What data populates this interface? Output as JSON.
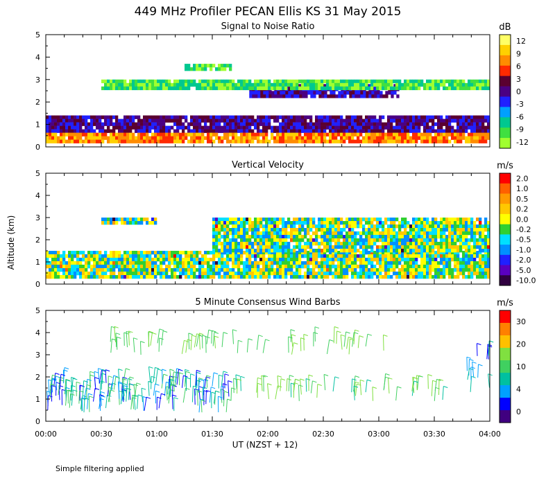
{
  "figure": {
    "title": "449 MHz Profiler PECAN Ellis KS 31 May 2015",
    "ylabel": "Altitude (km)",
    "xlabel": "UT   (NZST + 12)",
    "footnote": "Simple filtering applied",
    "x_ticks": [
      "00:00",
      "00:30",
      "01:00",
      "01:30",
      "02:00",
      "02:30",
      "03:00",
      "03:30",
      "04:00"
    ],
    "y_ticks": [
      "0",
      "1",
      "2",
      "3",
      "4",
      "5"
    ]
  },
  "chart_data": [
    {
      "type": "heatmap",
      "title": "Signal to Noise Ratio",
      "unit": "dB",
      "xlim": [
        "00:00",
        "04:00"
      ],
      "ylim": [
        0,
        5
      ],
      "ylabel": "Altitude (km)",
      "colorbar": {
        "labels": [
          "12",
          "9",
          "6",
          "3",
          "0",
          "-3",
          "-6",
          "-9",
          "-12"
        ],
        "colors": [
          "#ffff66",
          "#ffd000",
          "#ff8c00",
          "#ff2a00",
          "#5a0030",
          "#4b0082",
          "#2020ff",
          "#00a0ff",
          "#00c890",
          "#40e040",
          "#a0ff30"
        ]
      },
      "layers": [
        {
          "x": [
            "00:00",
            "04:00"
          ],
          "alt_km": [
            0.25,
            1.4
          ],
          "snr_db": "6 to 12 near surface, -3 to 3 near 1.2 km"
        },
        {
          "x": [
            "01:50",
            "03:10"
          ],
          "alt_km": [
            2.2,
            2.8
          ],
          "snr_db": "about 0"
        },
        {
          "x": [
            "00:30",
            "04:00"
          ],
          "alt_km": [
            2.6,
            3.0
          ],
          "snr_db": "-12 to -6"
        },
        {
          "x": [
            "01:15",
            "01:40"
          ],
          "alt_km": [
            3.4,
            3.7
          ],
          "snr_db": "-12 to -9"
        }
      ]
    },
    {
      "type": "heatmap",
      "title": "Vertical Velocity",
      "unit": "m/s",
      "xlim": [
        "00:00",
        "04:00"
      ],
      "ylim": [
        0,
        5
      ],
      "ylabel": "Altitude (km)",
      "colorbar": {
        "labels": [
          "2.0",
          "1.0",
          "0.5",
          "0.2",
          "0.0",
          "-0.2",
          "-0.5",
          "-1.0",
          "-2.0",
          "-5.0",
          "-10.0"
        ],
        "colors": [
          "#ff0000",
          "#ff6000",
          "#ff9a00",
          "#ffc800",
          "#ffff00",
          "#30d030",
          "#00e0ff",
          "#0090ff",
          "#2020ff",
          "#5a00c0",
          "#300040"
        ]
      },
      "layers": [
        {
          "x": [
            "00:00",
            "04:00"
          ],
          "alt_km": [
            0.25,
            1.5
          ],
          "w_ms": "-0.5 to 0.2"
        },
        {
          "x": [
            "01:30",
            "04:00"
          ],
          "alt_km": [
            1.5,
            3.0
          ],
          "w_ms": "-1.0 to 0.5"
        },
        {
          "x": [
            "00:30",
            "01:00"
          ],
          "alt_km": [
            2.8,
            3.0
          ],
          "w_ms": "about 0.0"
        }
      ]
    },
    {
      "type": "scatter",
      "title": "5 Minute Consensus Wind Barbs",
      "unit": "m/s",
      "xlim": [
        "00:00",
        "04:00"
      ],
      "ylim": [
        0,
        5
      ],
      "ylabel": "Altitude (km)",
      "colorbar": {
        "labels": [
          "30",
          "20",
          "10",
          "4",
          "0"
        ],
        "colors": [
          "#ff0000",
          "#ff8000",
          "#ffc000",
          "#80e040",
          "#40d060",
          "#00c0a0",
          "#00a0ff",
          "#0000ff",
          "#400080"
        ]
      },
      "wind_speed_ms": {
        "below_2km_00:00-01:30": "4 to 10",
        "3.0-3.6km_00:30-03:10": "about 10",
        "1.0-1.5km_01:30-03:30": "about 10"
      }
    }
  ]
}
